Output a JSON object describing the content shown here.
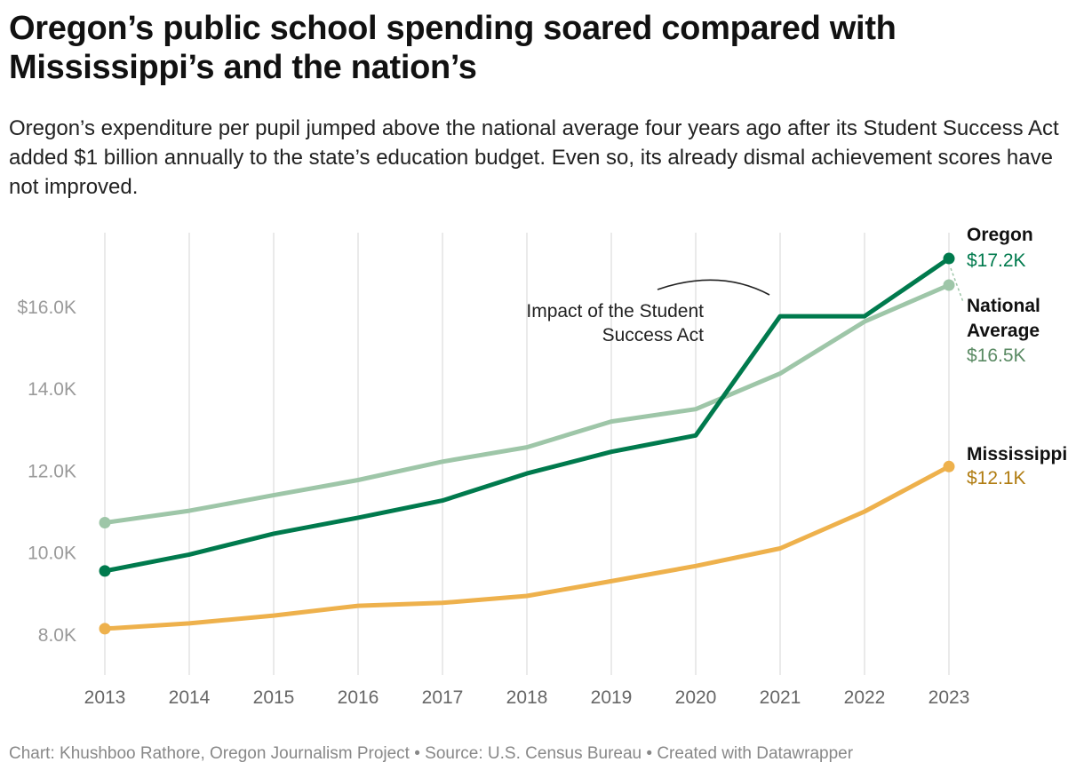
{
  "header": {
    "title": "Oregon’s public school spending soared compared with Mississippi’s and the nation’s",
    "subtitle": "Oregon’s expenditure per pupil jumped above the national average four years ago after its Student Success Act added $1 billion annually to the state’s education budget. Even so, its already dismal achievement scores have not improved."
  },
  "footer": {
    "text": "Chart: Khushboo Rathore, Oregon Journalism Project • Source: U.S. Census Bureau • Created with Datawrapper"
  },
  "chart_data": {
    "type": "line",
    "title": "Oregon’s public school spending soared compared with Mississippi’s and the nation’s",
    "xlabel": "",
    "ylabel": "",
    "x": [
      2013,
      2014,
      2015,
      2016,
      2017,
      2018,
      2019,
      2020,
      2021,
      2022,
      2023
    ],
    "x_tick_labels": [
      "2013",
      "2014",
      "2015",
      "2016",
      "2017",
      "2018",
      "2019",
      "2020",
      "2021",
      "2022",
      "2023"
    ],
    "ylim": [
      7000,
      17800
    ],
    "y_ticks": [
      8000,
      10000,
      12000,
      14000,
      16000
    ],
    "y_tick_labels": [
      "8.0K",
      "10.0K",
      "12.0K",
      "14.0K",
      "$16.0K"
    ],
    "grid": "vertical",
    "series": [
      {
        "name": "National Average",
        "label_lines": [
          "National",
          "Average"
        ],
        "end_label": "$16.5K",
        "color": "#9ec6a8",
        "label_color": "#5a8a63",
        "values": [
          10720,
          11010,
          11390,
          11760,
          12210,
          12560,
          13190,
          13490,
          14360,
          15630,
          16520
        ]
      },
      {
        "name": "Oregon",
        "label_lines": [
          "Oregon"
        ],
        "end_label": "$17.2K",
        "color": "#007a4d",
        "label_color": "#007a4d",
        "values": [
          9540,
          9940,
          10450,
          10840,
          11260,
          11920,
          12450,
          12850,
          15760,
          15760,
          17170
        ]
      },
      {
        "name": "Mississippi",
        "label_lines": [
          "Mississippi"
        ],
        "end_label": "$12.1K",
        "color": "#eeb14c",
        "label_color": "#b07c11",
        "values": [
          8130,
          8260,
          8450,
          8690,
          8760,
          8930,
          9290,
          9660,
          10090,
          10990,
          12090
        ]
      }
    ],
    "annotations": [
      {
        "text_lines": [
          "Impact of the Student",
          "Success Act"
        ]
      }
    ]
  }
}
